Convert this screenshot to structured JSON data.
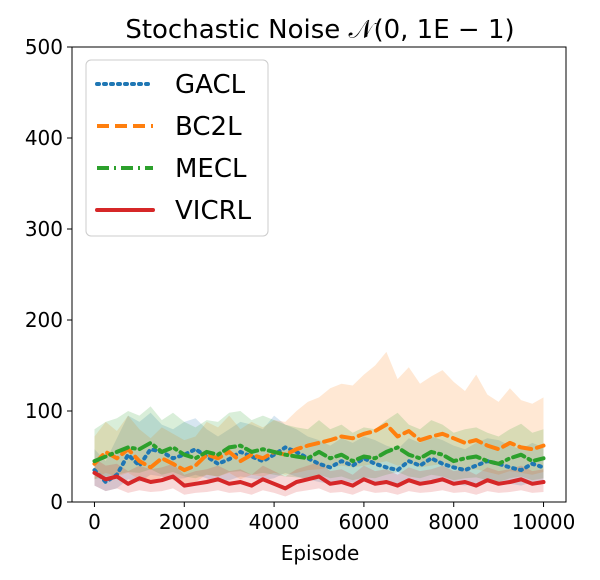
{
  "chart_data": {
    "type": "line",
    "title": "Stochastic Noise 𝒩(0, 1E − 1)",
    "xlabel": "Episode",
    "ylabel": "",
    "xlim": [
      -500,
      10500
    ],
    "ylim": [
      0,
      500
    ],
    "xticks": [
      0,
      2000,
      4000,
      6000,
      8000,
      10000
    ],
    "yticks": [
      0,
      100,
      200,
      300,
      400,
      500
    ],
    "xtick_labels": [
      "0",
      "2000",
      "4000",
      "6000",
      "8000",
      "10000"
    ],
    "ytick_labels": [
      "0",
      "100",
      "200",
      "300",
      "400",
      "500"
    ],
    "grid": false,
    "legend_position": "top-left",
    "x": [
      0,
      250,
      500,
      750,
      1000,
      1250,
      1500,
      1750,
      2000,
      2250,
      2500,
      2750,
      3000,
      3250,
      3500,
      3750,
      4000,
      4250,
      4500,
      4750,
      5000,
      5250,
      5500,
      5750,
      6000,
      6250,
      6500,
      6750,
      7000,
      7250,
      7500,
      7750,
      8000,
      8250,
      8500,
      8750,
      9000,
      9250,
      9500,
      9750,
      10000
    ],
    "series": [
      {
        "name": "GACL",
        "color": "#1f77b4",
        "style": "dotted",
        "values": [
          35,
          22,
          30,
          52,
          40,
          58,
          55,
          48,
          52,
          58,
          50,
          42,
          47,
          55,
          50,
          45,
          52,
          60,
          55,
          48,
          42,
          38,
          45,
          40,
          48,
          42,
          38,
          35,
          45,
          40,
          48,
          42,
          38,
          35,
          40,
          45,
          42,
          38,
          35,
          42,
          38
        ],
        "upper": [
          58,
          45,
          70,
          95,
          88,
          98,
          85,
          80,
          88,
          92,
          80,
          72,
          80,
          88,
          85,
          80,
          95,
          85,
          80,
          72,
          68,
          62,
          70,
          65,
          72,
          68,
          62,
          58,
          70,
          65,
          72,
          68,
          62,
          58,
          65,
          70,
          68,
          62,
          58,
          65,
          60
        ],
        "lower": [
          18,
          12,
          15,
          25,
          22,
          30,
          28,
          25,
          26,
          30,
          26,
          22,
          24,
          28,
          26,
          24,
          26,
          32,
          28,
          25,
          22,
          20,
          24,
          21,
          25,
          22,
          20,
          18,
          24,
          21,
          25,
          22,
          20,
          18,
          21,
          24,
          22,
          20,
          18,
          22,
          20
        ]
      },
      {
        "name": "BC2L",
        "color": "#ff7f0e",
        "style": "dashed",
        "values": [
          42,
          55,
          48,
          58,
          45,
          38,
          48,
          42,
          35,
          40,
          52,
          48,
          55,
          45,
          52,
          48,
          55,
          52,
          58,
          62,
          65,
          68,
          72,
          70,
          75,
          78,
          85,
          72,
          78,
          68,
          72,
          75,
          70,
          65,
          68,
          62,
          58,
          65,
          60,
          58,
          62
        ],
        "upper": [
          72,
          88,
          78,
          95,
          80,
          70,
          82,
          75,
          68,
          72,
          88,
          82,
          95,
          80,
          88,
          82,
          90,
          88,
          100,
          110,
          115,
          125,
          130,
          128,
          140,
          150,
          165,
          135,
          148,
          130,
          138,
          145,
          132,
          122,
          140,
          118,
          110,
          125,
          112,
          108,
          115
        ],
        "lower": [
          25,
          32,
          28,
          32,
          25,
          20,
          28,
          24,
          20,
          22,
          30,
          28,
          32,
          25,
          30,
          28,
          32,
          30,
          32,
          35,
          36,
          38,
          40,
          38,
          40,
          42,
          45,
          40,
          42,
          38,
          40,
          42,
          38,
          35,
          36,
          33,
          30,
          34,
          32,
          30,
          33
        ]
      },
      {
        "name": "MECL",
        "color": "#2ca02c",
        "style": "dashdot",
        "values": [
          45,
          50,
          55,
          60,
          58,
          65,
          55,
          60,
          52,
          48,
          55,
          52,
          60,
          62,
          55,
          58,
          55,
          52,
          50,
          48,
          55,
          48,
          52,
          45,
          50,
          48,
          55,
          60,
          52,
          48,
          55,
          52,
          45,
          48,
          50,
          45,
          42,
          48,
          52,
          45,
          48
        ],
        "upper": [
          80,
          88,
          92,
          100,
          95,
          105,
          90,
          98,
          88,
          82,
          90,
          88,
          98,
          100,
          90,
          95,
          90,
          85,
          82,
          80,
          90,
          80,
          85,
          76,
          82,
          80,
          90,
          98,
          85,
          80,
          90,
          85,
          76,
          80,
          82,
          76,
          72,
          80,
          86,
          76,
          80
        ],
        "lower": [
          25,
          28,
          30,
          33,
          32,
          36,
          30,
          33,
          28,
          26,
          30,
          28,
          33,
          34,
          30,
          32,
          30,
          28,
          27,
          26,
          30,
          26,
          28,
          24,
          27,
          26,
          30,
          33,
          28,
          26,
          30,
          28,
          24,
          26,
          27,
          24,
          22,
          26,
          28,
          24,
          26
        ]
      },
      {
        "name": "VICRL",
        "color": "#d62728",
        "style": "solid",
        "values": [
          32,
          25,
          28,
          20,
          26,
          22,
          24,
          28,
          18,
          20,
          22,
          25,
          20,
          22,
          18,
          25,
          20,
          15,
          22,
          25,
          28,
          20,
          22,
          18,
          25,
          20,
          22,
          18,
          24,
          20,
          22,
          25,
          20,
          22,
          18,
          24,
          20,
          22,
          25,
          20,
          22
        ],
        "upper": [
          48,
          40,
          42,
          34,
          40,
          36,
          38,
          42,
          30,
          34,
          36,
          40,
          34,
          36,
          30,
          40,
          34,
          28,
          36,
          40,
          44,
          34,
          36,
          30,
          40,
          34,
          36,
          30,
          38,
          34,
          36,
          40,
          34,
          36,
          30,
          38,
          34,
          36,
          40,
          34,
          36
        ],
        "lower": [
          18,
          12,
          15,
          10,
          13,
          11,
          12,
          15,
          8,
          10,
          11,
          13,
          10,
          11,
          8,
          13,
          10,
          6,
          11,
          13,
          15,
          10,
          11,
          8,
          13,
          10,
          11,
          8,
          12,
          10,
          11,
          13,
          10,
          11,
          8,
          12,
          10,
          11,
          13,
          10,
          11
        ]
      }
    ]
  }
}
